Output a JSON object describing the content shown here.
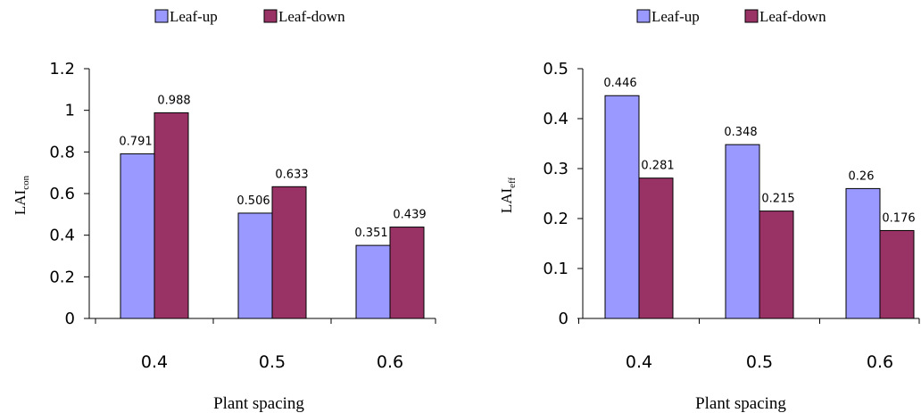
{
  "chart_data": [
    {
      "type": "bar",
      "categories": [
        "0.4",
        "0.5",
        "0.6"
      ],
      "series": [
        {
          "name": "Leaf-up",
          "values": [
            0.791,
            0.506,
            0.351
          ],
          "labels": [
            "0.791",
            "0.506",
            "0.351"
          ]
        },
        {
          "name": "Leaf-down",
          "values": [
            0.988,
            0.633,
            0.439
          ],
          "labels": [
            "0.988",
            "0.633",
            "0.439"
          ]
        }
      ],
      "yticks": [
        "0",
        "0.2",
        "0.4",
        "0.6",
        "0.8",
        "1",
        "1.2"
      ],
      "ylim": [
        0,
        1.2
      ],
      "xlabel": "Plant spacing",
      "ylabel_main": "LAI",
      "ylabel_sub": "con",
      "legend_position": "top"
    },
    {
      "type": "bar",
      "categories": [
        "0.4",
        "0.5",
        "0.6"
      ],
      "series": [
        {
          "name": "Leaf-up",
          "values": [
            0.446,
            0.348,
            0.26
          ],
          "labels": [
            "0.446",
            "0.348",
            "0.26"
          ]
        },
        {
          "name": "Leaf-down",
          "values": [
            0.281,
            0.215,
            0.176
          ],
          "labels": [
            "0.281",
            "0.215",
            "0.176"
          ]
        }
      ],
      "yticks": [
        "0",
        "0.1",
        "0.2",
        "0.3",
        "0.4",
        "0.5"
      ],
      "ylim": [
        0,
        0.5
      ],
      "xlabel": "Plant spacing",
      "ylabel_main": "LAI",
      "ylabel_sub": "eff",
      "legend_position": "top"
    }
  ],
  "colors": {
    "leaf_up": "#9999ff",
    "leaf_down": "#993366",
    "axis": "#000000"
  }
}
